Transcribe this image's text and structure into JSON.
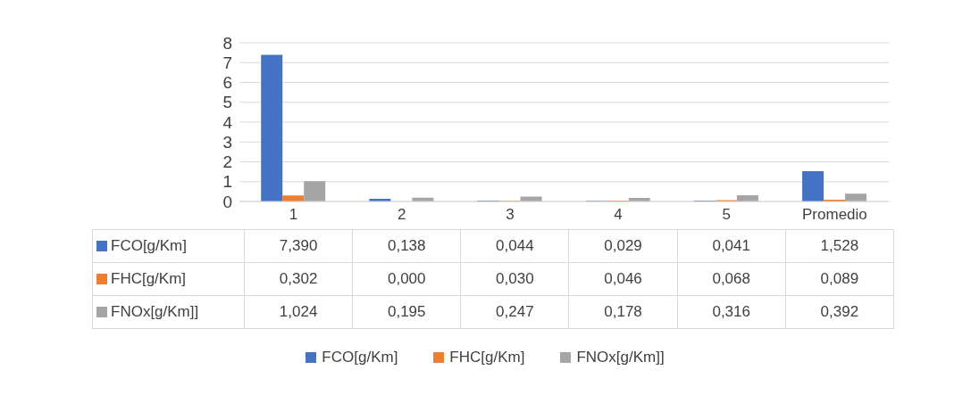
{
  "chart_data": {
    "type": "bar",
    "categories": [
      "1",
      "2",
      "3",
      "4",
      "5",
      "Promedio"
    ],
    "series": [
      {
        "name": "FCO[g/Km]",
        "color": "#4472c4",
        "values": [
          7.39,
          0.138,
          0.044,
          0.029,
          0.041,
          1.528
        ],
        "value_labels": [
          "7,390",
          "0,138",
          "0,044",
          "0,029",
          "0,041",
          "1,528"
        ]
      },
      {
        "name": "FHC[g/Km]",
        "color": "#ed7d31",
        "values": [
          0.302,
          0.0,
          0.03,
          0.046,
          0.068,
          0.089
        ],
        "value_labels": [
          "0,302",
          "0,000",
          "0,030",
          "0,046",
          "0,068",
          "0,089"
        ]
      },
      {
        "name": "FNOx[g/Km]]",
        "color": "#a5a5a5",
        "values": [
          1.024,
          0.195,
          0.247,
          0.178,
          0.316,
          0.392
        ],
        "value_labels": [
          "1,024",
          "0,195",
          "0,247",
          "0,178",
          "0,316",
          "0,392"
        ]
      }
    ],
    "ylim": [
      0,
      8
    ],
    "yticks": [
      0,
      1,
      2,
      3,
      4,
      5,
      6,
      7,
      8
    ],
    "grid": "y",
    "legend": "bottom"
  }
}
